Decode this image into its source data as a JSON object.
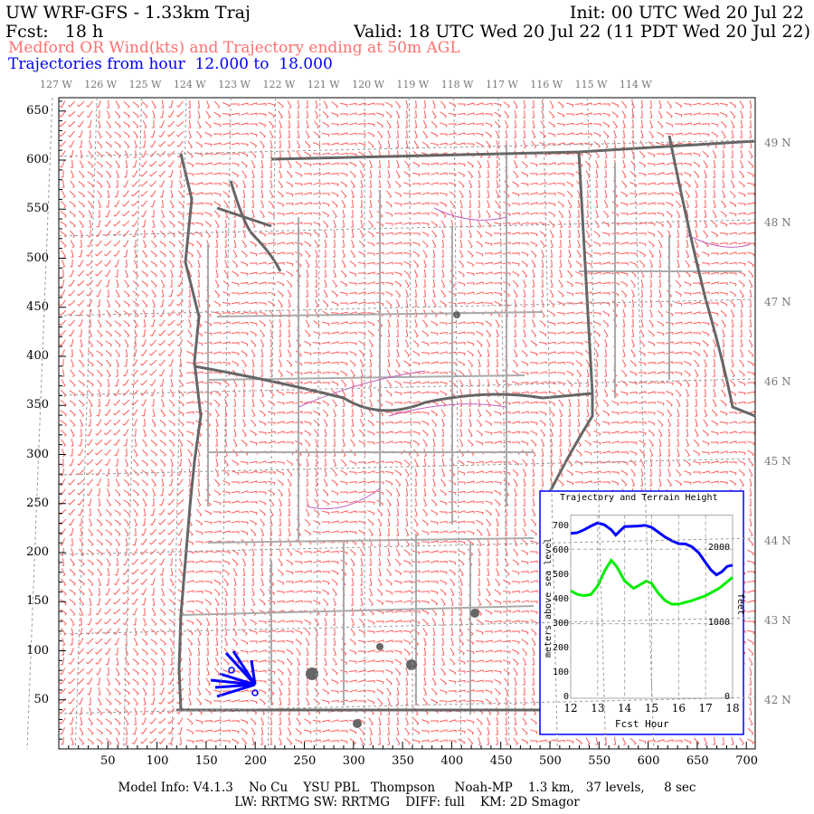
{
  "header": {
    "title": "UW WRF-GFS - 1.33km Traj",
    "init": "Init: 00 UTC Wed 20 Jul 22",
    "fcst": "Fcst:   18 h",
    "valid": "Valid: 18 UTC Wed 20 Jul 22 (11 PDT Wed 20 Jul 22)",
    "subtitle": "Medford OR Wind(kts) and Trajectory ending at 50m AGL",
    "traj_range": "Trajectories from hour  12.000 to  18.000"
  },
  "colors": {
    "subtitle": "#ff7070",
    "traj": "#0000ff",
    "terrain": "#00ee00",
    "barbs": "#ff5a5a",
    "coast": "#666666",
    "borders": "#aaaaaa",
    "rivers": "#c060c0"
  },
  "map": {
    "lon_labels": [
      "127 W",
      "126 W",
      "125 W",
      "124 W",
      "123 W",
      "122 W",
      "121 W",
      "120 W",
      "119 W",
      "118 W",
      "117 W",
      "116 W",
      "115 W",
      "114 W"
    ],
    "lat_labels": [
      "49 N",
      "48 N",
      "47 N",
      "46 N",
      "45 N",
      "44 N",
      "43 N",
      "42 N"
    ],
    "x_ticks": [
      "50",
      "100",
      "150",
      "200",
      "250",
      "300",
      "350",
      "400",
      "450",
      "500",
      "550",
      "600",
      "650",
      "700"
    ],
    "y_ticks": [
      "650",
      "600",
      "550",
      "500",
      "450",
      "400",
      "350",
      "300",
      "250",
      "200",
      "150",
      "100",
      "50"
    ]
  },
  "inset": {
    "title": "Trajectory and Terrain Height",
    "xlabel": "Fcst Hour",
    "ylabel_left": "meters above sea level",
    "ylabel_right": "feet",
    "chart_data": {
      "type": "line",
      "title": "Trajectory and Terrain Height",
      "xlabel": "Fcst Hour",
      "ylabel": "meters above sea level",
      "xlim": [
        12,
        18
      ],
      "ylim": [
        0,
        750
      ],
      "x_ticks": [
        "12",
        "13",
        "14",
        "15",
        "16",
        "17",
        "18"
      ],
      "y_ticks": [
        "0",
        "100",
        "200",
        "300",
        "400",
        "500",
        "600",
        "700"
      ],
      "right_ticks": [
        {
          "label": "0",
          "m": 0
        },
        {
          "label": "1000",
          "m": 305
        },
        {
          "label": "2000",
          "m": 610
        }
      ],
      "grid": true,
      "series": [
        {
          "color": "#0000ff",
          "x": [
            12,
            12.25,
            12.5,
            12.75,
            13,
            13.25,
            13.5,
            13.67,
            13.85,
            14,
            14.5,
            14.75,
            15,
            15.25,
            15.5,
            15.75,
            16,
            16.25,
            16.5,
            16.75,
            17,
            17.2,
            17.4,
            17.6,
            17.8,
            18
          ],
          "y": [
            675,
            678,
            690,
            705,
            718,
            710,
            690,
            668,
            688,
            703,
            705,
            708,
            700,
            680,
            660,
            645,
            633,
            632,
            620,
            595,
            555,
            525,
            505,
            518,
            540,
            545
          ]
        },
        {
          "color": "#00ee00",
          "x": [
            12,
            12.25,
            12.5,
            12.75,
            13,
            13.25,
            13.5,
            13.7,
            14,
            14.33,
            14.5,
            14.8,
            15,
            15.25,
            15.5,
            15.75,
            16,
            16.5,
            17,
            17.5,
            18
          ],
          "y": [
            440,
            425,
            420,
            425,
            460,
            520,
            565,
            540,
            480,
            450,
            460,
            480,
            470,
            430,
            400,
            385,
            385,
            400,
            420,
            450,
            495
          ]
        }
      ]
    }
  },
  "footer": {
    "line1": "Model Info: V4.1.3    No Cu    YSU PBL   Thompson     Noah-MP    1.3 km,   37 levels,     8 sec",
    "line2": "LW: RRTMG SW: RRTMG    DIFF: full    KM: 2D Smagor"
  }
}
